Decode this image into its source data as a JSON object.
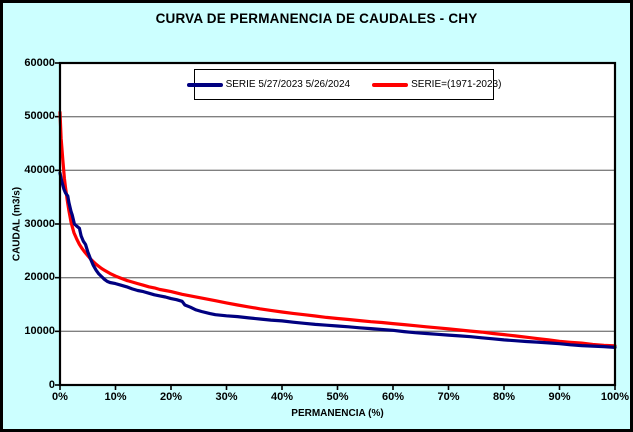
{
  "window": {
    "title": "CURVA DE PERMANENCIA DE CAUDALES - CHY"
  },
  "chart_data": {
    "type": "line",
    "title": "CURVA DE PERMANENCIA DE CAUDALES - CHY",
    "xlabel": "PERMANENCIA (%)",
    "ylabel": "CAUDAL (m3/s)",
    "xlim": [
      0,
      100
    ],
    "ylim": [
      0,
      60000
    ],
    "grid": "horizontal",
    "legend_position": "top-center-inside",
    "colors": {
      "canvas_background": "#CCFFFF",
      "plot_background": "#FFFFFF",
      "gridline": "#808080",
      "axis": "#000000",
      "series_blue": "#000080",
      "series_red": "#FF0000"
    },
    "x_tick_values": [
      0,
      10,
      20,
      30,
      40,
      50,
      60,
      70,
      80,
      90,
      100
    ],
    "x_tick_labels": [
      "0%",
      "10%",
      "20%",
      "30%",
      "40%",
      "50%",
      "60%",
      "70%",
      "80%",
      "90%",
      "100%"
    ],
    "y_tick_values": [
      0,
      10000,
      20000,
      30000,
      40000,
      50000,
      60000
    ],
    "y_tick_labels": [
      "0",
      "10000",
      "20000",
      "30000",
      "40000",
      "50000",
      "60000"
    ],
    "y_gridline_values": [
      10000,
      20000,
      30000,
      40000,
      50000
    ],
    "series": [
      {
        "name": "SERIE=(1971-2023)",
        "color": "#FF0000",
        "points": [
          [
            0,
            50800
          ],
          [
            0.2,
            46000
          ],
          [
            0.5,
            42000
          ],
          [
            0.8,
            38500
          ],
          [
            1,
            36800
          ],
          [
            1.3,
            34500
          ],
          [
            1.6,
            32500
          ],
          [
            2,
            30300
          ],
          [
            2.5,
            28400
          ],
          [
            3,
            27200
          ],
          [
            3.5,
            26200
          ],
          [
            4,
            25400
          ],
          [
            4.5,
            24700
          ],
          [
            5,
            24100
          ],
          [
            5.5,
            23500
          ],
          [
            6,
            23000
          ],
          [
            6.5,
            22500
          ],
          [
            7,
            22100
          ],
          [
            7.5,
            21700
          ],
          [
            8,
            21400
          ],
          [
            9,
            20800
          ],
          [
            10,
            20300
          ],
          [
            11,
            19900
          ],
          [
            12,
            19500
          ],
          [
            13,
            19200
          ],
          [
            14,
            18900
          ],
          [
            15,
            18600
          ],
          [
            16,
            18300
          ],
          [
            17,
            18100
          ],
          [
            18,
            17800
          ],
          [
            19,
            17600
          ],
          [
            20,
            17400
          ],
          [
            22,
            16900
          ],
          [
            24,
            16500
          ],
          [
            26,
            16100
          ],
          [
            28,
            15700
          ],
          [
            30,
            15300
          ],
          [
            32,
            14900
          ],
          [
            34,
            14550
          ],
          [
            36,
            14200
          ],
          [
            38,
            13900
          ],
          [
            40,
            13600
          ],
          [
            42,
            13350
          ],
          [
            44,
            13100
          ],
          [
            46,
            12850
          ],
          [
            48,
            12600
          ],
          [
            50,
            12400
          ],
          [
            52,
            12200
          ],
          [
            54,
            12000
          ],
          [
            56,
            11800
          ],
          [
            58,
            11650
          ],
          [
            60,
            11450
          ],
          [
            62,
            11250
          ],
          [
            64,
            11050
          ],
          [
            66,
            10850
          ],
          [
            68,
            10650
          ],
          [
            70,
            10450
          ],
          [
            72,
            10250
          ],
          [
            74,
            10050
          ],
          [
            76,
            9850
          ],
          [
            78,
            9600
          ],
          [
            80,
            9400
          ],
          [
            82,
            9150
          ],
          [
            84,
            8900
          ],
          [
            86,
            8650
          ],
          [
            88,
            8400
          ],
          [
            90,
            8150
          ],
          [
            92,
            7950
          ],
          [
            94,
            7800
          ],
          [
            96,
            7550
          ],
          [
            98,
            7400
          ],
          [
            100,
            7300
          ]
        ]
      },
      {
        "name": "SERIE 5/27/2023 5/26/2024",
        "color": "#000080",
        "points": [
          [
            0,
            39500
          ],
          [
            0.3,
            38000
          ],
          [
            0.7,
            36500
          ],
          [
            1,
            35800
          ],
          [
            1.4,
            35200
          ],
          [
            1.6,
            34000
          ],
          [
            2,
            32300
          ],
          [
            2.2,
            31700
          ],
          [
            2.6,
            30000
          ],
          [
            3,
            29600
          ],
          [
            3.5,
            29200
          ],
          [
            3.8,
            27800
          ],
          [
            4.2,
            26800
          ],
          [
            4.6,
            26200
          ],
          [
            5,
            24800
          ],
          [
            5.5,
            23500
          ],
          [
            6,
            22300
          ],
          [
            6.5,
            21400
          ],
          [
            7,
            20700
          ],
          [
            7.5,
            20200
          ],
          [
            8,
            19700
          ],
          [
            8.5,
            19300
          ],
          [
            9,
            19100
          ],
          [
            10,
            18900
          ],
          [
            11,
            18600
          ],
          [
            12,
            18300
          ],
          [
            13,
            17900
          ],
          [
            14,
            17600
          ],
          [
            15,
            17400
          ],
          [
            16,
            17100
          ],
          [
            17,
            16800
          ],
          [
            18,
            16600
          ],
          [
            19,
            16400
          ],
          [
            20,
            16100
          ],
          [
            21,
            15900
          ],
          [
            22,
            15600
          ],
          [
            22.5,
            14900
          ],
          [
            23.5,
            14500
          ],
          [
            24.5,
            14000
          ],
          [
            25.5,
            13700
          ],
          [
            27,
            13300
          ],
          [
            28,
            13100
          ],
          [
            30,
            12900
          ],
          [
            32,
            12750
          ],
          [
            34,
            12500
          ],
          [
            36,
            12300
          ],
          [
            38,
            12100
          ],
          [
            40,
            11950
          ],
          [
            42,
            11700
          ],
          [
            44,
            11500
          ],
          [
            46,
            11300
          ],
          [
            48,
            11150
          ],
          [
            50,
            11000
          ],
          [
            52,
            10850
          ],
          [
            54,
            10650
          ],
          [
            56,
            10500
          ],
          [
            58,
            10350
          ],
          [
            60,
            10200
          ],
          [
            62,
            9950
          ],
          [
            64,
            9750
          ],
          [
            66,
            9600
          ],
          [
            68,
            9450
          ],
          [
            70,
            9300
          ],
          [
            72,
            9150
          ],
          [
            74,
            9000
          ],
          [
            76,
            8800
          ],
          [
            78,
            8600
          ],
          [
            80,
            8400
          ],
          [
            82,
            8250
          ],
          [
            84,
            8100
          ],
          [
            86,
            8000
          ],
          [
            88,
            7850
          ],
          [
            90,
            7700
          ],
          [
            92,
            7500
          ],
          [
            94,
            7350
          ],
          [
            96,
            7250
          ],
          [
            98,
            7150
          ],
          [
            100,
            7000
          ]
        ]
      }
    ],
    "legend_order": [
      1,
      0
    ]
  }
}
